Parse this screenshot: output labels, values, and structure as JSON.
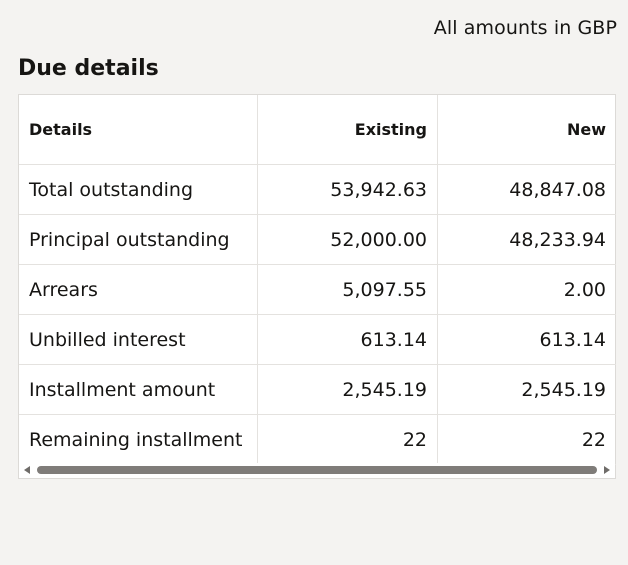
{
  "header": {
    "currency_note": "All amounts in GBP"
  },
  "section": {
    "title": "Due details"
  },
  "table": {
    "columns": [
      "Details",
      "Existing",
      "New"
    ],
    "rows": [
      {
        "label": "Total outstanding",
        "existing": "53,942.63",
        "new": "48,847.08"
      },
      {
        "label": "Principal outstanding",
        "existing": "52,000.00",
        "new": "48,233.94"
      },
      {
        "label": "Arrears",
        "existing": "5,097.55",
        "new": "2.00"
      },
      {
        "label": "Unbilled interest",
        "existing": "613.14",
        "new": "613.14"
      },
      {
        "label": "Installment amount",
        "existing": "2,545.19",
        "new": "2,545.19"
      },
      {
        "label": "Remaining installment",
        "existing": "22",
        "new": "22"
      }
    ]
  },
  "scrollbar": {
    "left_icon": "scroll-left-arrow-icon",
    "right_icon": "scroll-right-arrow-icon"
  }
}
